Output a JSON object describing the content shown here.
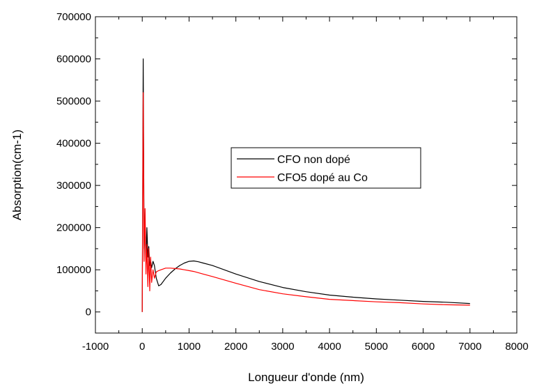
{
  "chart_data": {
    "type": "line",
    "title": "",
    "xlabel": "Longueur d'onde (nm)",
    "ylabel": "Absorption(cm-1)",
    "xlim": [
      -1000,
      8000
    ],
    "ylim": [
      -50000,
      700000
    ],
    "xticks": [
      -1000,
      0,
      1000,
      2000,
      3000,
      4000,
      5000,
      6000,
      7000,
      8000
    ],
    "xtick_labels": [
      "-1000",
      "0",
      "1000",
      "2000",
      "3000",
      "4000",
      "5000",
      "6000",
      "7000",
      "8000"
    ],
    "yticks": [
      0,
      100000,
      200000,
      300000,
      400000,
      500000,
      600000,
      700000
    ],
    "ytick_labels": [
      "0",
      "100000",
      "200000",
      "300000",
      "400000",
      "500000",
      "600000",
      "700000"
    ],
    "grid": false,
    "legend": {
      "position": "center-right"
    },
    "series": [
      {
        "name": "CFO non dopé",
        "color": "#000000",
        "x": [
          0,
          20,
          40,
          60,
          80,
          100,
          120,
          140,
          160,
          180,
          200,
          230,
          260,
          300,
          350,
          400,
          500,
          600,
          700,
          800,
          900,
          1000,
          1100,
          1200,
          1300,
          1500,
          2000,
          2500,
          3000,
          3500,
          4000,
          4500,
          5000,
          5500,
          6000,
          6500,
          7000
        ],
        "y": [
          0,
          600000,
          150000,
          210000,
          120000,
          200000,
          130000,
          155000,
          110000,
          120000,
          105000,
          120000,
          110000,
          80000,
          62000,
          65000,
          80000,
          92000,
          102000,
          110000,
          116000,
          120000,
          121000,
          119000,
          116000,
          110000,
          90000,
          72000,
          58000,
          48000,
          40000,
          35000,
          31000,
          28000,
          25000,
          23000,
          20000
        ]
      },
      {
        "name": "CFO5 dopé au Co",
        "color": "#ff0000",
        "x": [
          0,
          20,
          40,
          60,
          80,
          100,
          120,
          140,
          160,
          180,
          200,
          230,
          260,
          300,
          350,
          400,
          500,
          600,
          700,
          800,
          900,
          1000,
          1100,
          1200,
          1300,
          1500,
          2000,
          2500,
          3000,
          3500,
          4000,
          4500,
          5000,
          5500,
          6000,
          6500,
          7000
        ],
        "y": [
          0,
          520000,
          120000,
          245000,
          90000,
          160000,
          60000,
          150000,
          50000,
          130000,
          70000,
          100000,
          80000,
          95000,
          98000,
          100000,
          104000,
          104000,
          103000,
          102000,
          100000,
          98000,
          96000,
          93000,
          90000,
          84000,
          68000,
          53000,
          43000,
          36000,
          30000,
          27000,
          24000,
          22000,
          19000,
          17000,
          16000
        ]
      }
    ]
  }
}
